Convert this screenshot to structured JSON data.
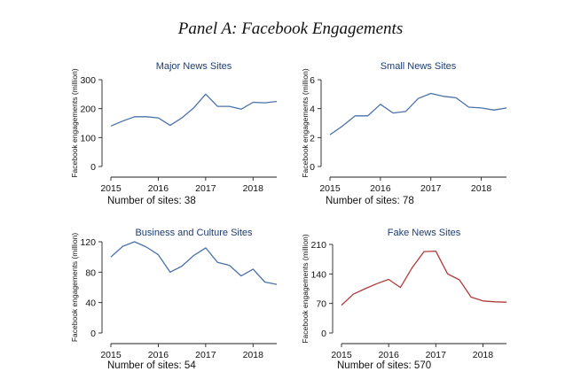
{
  "figure": {
    "panel_title": "Panel A: Facebook Engagements"
  },
  "chart_data": [
    {
      "type": "line",
      "title": "Major News Sites",
      "xlabel": "",
      "ylabel": "Facebook engagements (million)",
      "x_ticks": [
        "2015",
        "2016",
        "2017",
        "2018"
      ],
      "y_ticks": [
        "0",
        "100",
        "200",
        "300"
      ],
      "ylim": [
        0,
        300
      ],
      "xlim": [
        2015,
        2018.5
      ],
      "note": "Number of sites: 38",
      "line_color": "#4a72a8",
      "series": [
        {
          "x": [
            2015.0,
            2015.25,
            2015.5,
            2015.75,
            2016.0,
            2016.25,
            2016.5,
            2016.75,
            2017.0,
            2017.25,
            2017.5,
            2017.75,
            2018.0,
            2018.25,
            2018.5
          ],
          "y": [
            140,
            157,
            172,
            172,
            168,
            142,
            168,
            203,
            250,
            208,
            208,
            198,
            222,
            220,
            225
          ]
        }
      ]
    },
    {
      "type": "line",
      "title": "Small News Sites",
      "xlabel": "",
      "ylabel": "Facebook engagements (million)",
      "x_ticks": [
        "2015",
        "2016",
        "2017",
        "2018"
      ],
      "y_ticks": [
        "0",
        "2",
        "4",
        "6"
      ],
      "ylim": [
        0,
        6
      ],
      "xlim": [
        2015,
        2018.5
      ],
      "note": "Number of sites: 78",
      "line_color": "#4a72a8",
      "series": [
        {
          "x": [
            2015.0,
            2015.25,
            2015.5,
            2015.75,
            2016.0,
            2016.25,
            2016.5,
            2016.75,
            2017.0,
            2017.25,
            2017.5,
            2017.75,
            2018.0,
            2018.25,
            2018.5
          ],
          "y": [
            2.2,
            2.8,
            3.5,
            3.5,
            4.3,
            3.7,
            3.8,
            4.7,
            5.05,
            4.85,
            4.75,
            4.1,
            4.05,
            3.9,
            4.05
          ]
        }
      ]
    },
    {
      "type": "line",
      "title": "Business and Culture Sites",
      "xlabel": "",
      "ylabel": "Facebook engagements (million)",
      "x_ticks": [
        "2015",
        "2016",
        "2017",
        "2018"
      ],
      "y_ticks": [
        "0",
        "40",
        "80",
        "120"
      ],
      "ylim": [
        0,
        120
      ],
      "xlim": [
        2015,
        2018.5
      ],
      "note": "Number of sites: 54",
      "line_color": "#4a72a8",
      "series": [
        {
          "x": [
            2015.0,
            2015.25,
            2015.5,
            2015.75,
            2016.0,
            2016.25,
            2016.5,
            2016.75,
            2017.0,
            2017.25,
            2017.5,
            2017.75,
            2018.0,
            2018.25,
            2018.5
          ],
          "y": [
            100,
            114,
            120,
            113,
            103,
            80,
            88,
            102,
            112,
            93,
            89,
            75,
            84,
            67,
            64
          ]
        }
      ]
    },
    {
      "type": "line",
      "title": "Fake News Sites",
      "xlabel": "",
      "ylabel": "Facebook engagements (million)",
      "x_ticks": [
        "2015",
        "2016",
        "2017",
        "2018"
      ],
      "y_ticks": [
        "0",
        "70",
        "140",
        "210"
      ],
      "ylim": [
        0,
        210
      ],
      "xlim": [
        2015,
        2018.5
      ],
      "note": "Number of sites: 570",
      "line_color": "#b03a3a",
      "series": [
        {
          "x": [
            2015.0,
            2015.25,
            2015.5,
            2015.75,
            2016.0,
            2016.25,
            2016.5,
            2016.75,
            2017.0,
            2017.25,
            2017.5,
            2017.75,
            2018.0,
            2018.25,
            2018.5
          ],
          "y": [
            66,
            92,
            105,
            117,
            127,
            108,
            155,
            193,
            194,
            140,
            126,
            85,
            76,
            74,
            73
          ]
        }
      ]
    }
  ]
}
